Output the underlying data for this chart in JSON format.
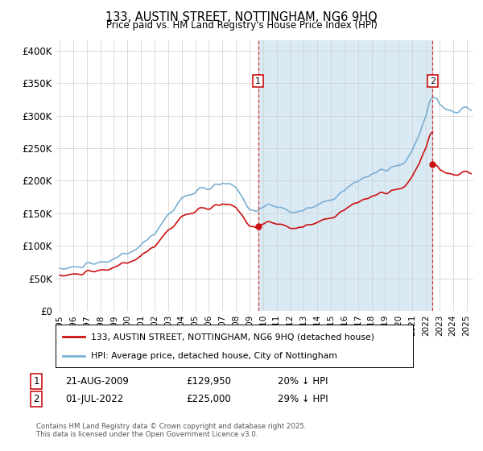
{
  "title": "133, AUSTIN STREET, NOTTINGHAM, NG6 9HQ",
  "subtitle": "Price paid vs. HM Land Registry's House Price Index (HPI)",
  "ylabel_ticks": [
    "£0",
    "£50K",
    "£100K",
    "£150K",
    "£200K",
    "£250K",
    "£300K",
    "£350K",
    "£400K"
  ],
  "ytick_vals": [
    0,
    50000,
    100000,
    150000,
    200000,
    250000,
    300000,
    350000,
    400000
  ],
  "ylim": [
    0,
    415000
  ],
  "xlim": [
    1994.7,
    2025.5
  ],
  "hpi_color": "#7bafd4",
  "hpi_fill_color": "#daeaf5",
  "price_color": "#cc1111",
  "vline_color": "#cc1111",
  "annotation1": {
    "label": "1",
    "date_str": "21-AUG-2009",
    "price": "£129,950",
    "pct": "20% ↓ HPI"
  },
  "annotation2": {
    "label": "2",
    "date_str": "01-JUL-2022",
    "price": "£225,000",
    "pct": "29% ↓ HPI"
  },
  "sale1_year": 2009.64,
  "sale1_price": 129950,
  "sale2_year": 2022.5,
  "sale2_price": 225000,
  "legend_line1": "133, AUSTIN STREET, NOTTINGHAM, NG6 9HQ (detached house)",
  "legend_line2": "HPI: Average price, detached house, City of Nottingham",
  "footer": "Contains HM Land Registry data © Crown copyright and database right 2025.\nThis data is licensed under the Open Government Licence v3.0.",
  "background_color": "#ffffff",
  "grid_color": "#cccccc"
}
